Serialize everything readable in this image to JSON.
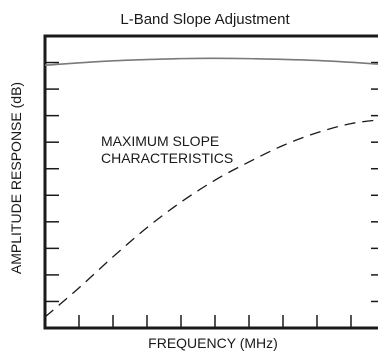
{
  "chart_data": {
    "type": "line",
    "title": "L-Band Slope Adjustment",
    "xlabel": "FREQUENCY  (MHz)",
    "ylabel": "AMPLITUDE RESPONSE (dB)",
    "annotation_lines": [
      "MAXIMUM SLOPE",
      "CHARACTERISTICS"
    ],
    "xlim": [
      0,
      10
    ],
    "ylim": [
      0,
      8
    ],
    "x_ticks": 9,
    "y_ticks": 10,
    "grid": false,
    "series": [
      {
        "style": "solid",
        "color": "#7a7a7a",
        "points": [
          [
            0,
            7.2
          ],
          [
            2,
            7.32
          ],
          [
            4,
            7.38
          ],
          [
            5,
            7.39
          ],
          [
            6,
            7.38
          ],
          [
            8,
            7.33
          ],
          [
            10,
            7.22
          ]
        ]
      },
      {
        "style": "dashed",
        "color": "#1a1a1a",
        "points": [
          [
            0,
            0.3
          ],
          [
            1,
            1.1
          ],
          [
            2,
            1.95
          ],
          [
            3,
            2.75
          ],
          [
            4,
            3.45
          ],
          [
            5,
            4.05
          ],
          [
            6,
            4.55
          ],
          [
            7,
            5.0
          ],
          [
            8,
            5.35
          ],
          [
            9,
            5.6
          ],
          [
            10,
            5.72
          ]
        ]
      }
    ]
  }
}
